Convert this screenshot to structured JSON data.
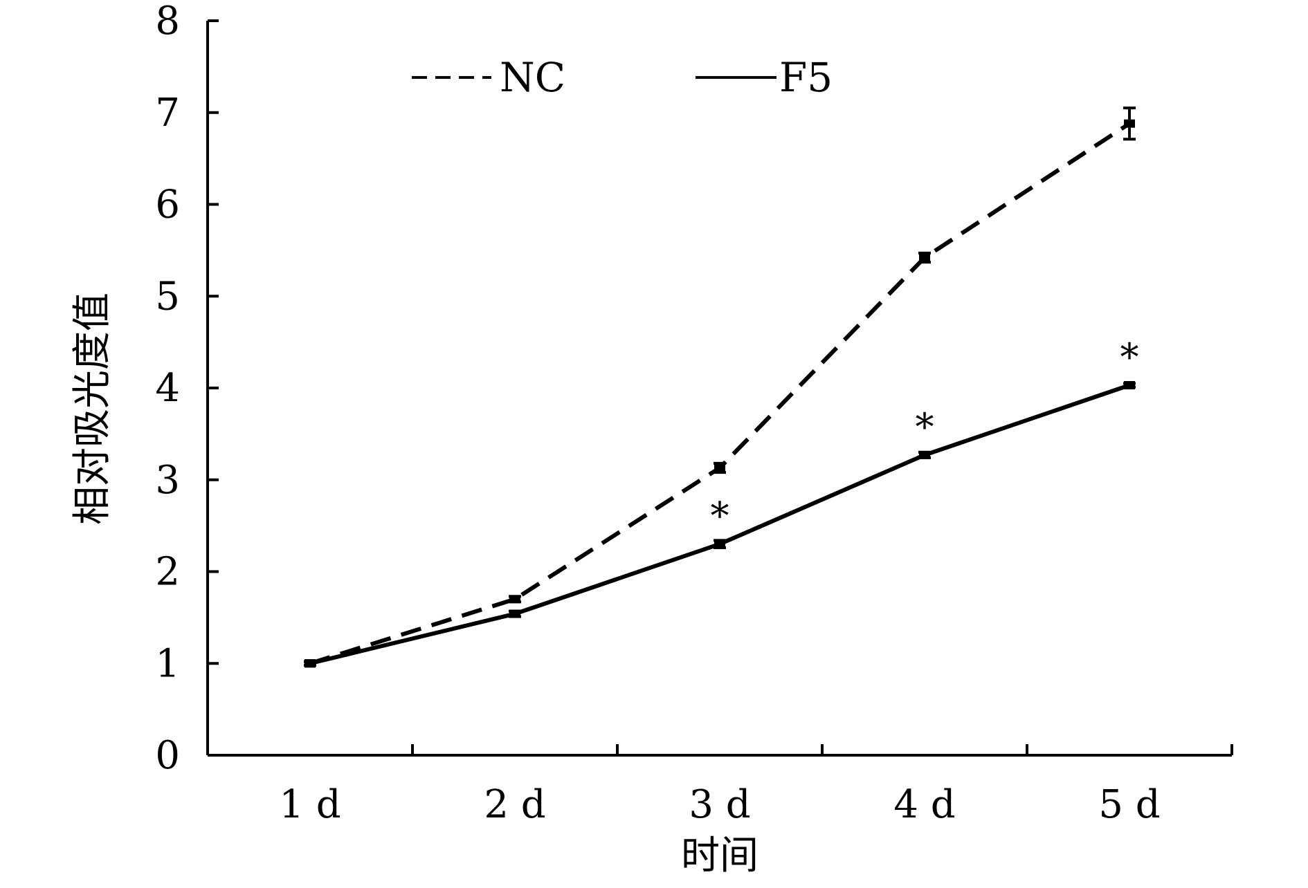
{
  "chart_data": {
    "type": "line",
    "title": "",
    "xlabel": "时间",
    "ylabel": "相对吸光度值",
    "categories": [
      "1 d",
      "2 d",
      "3 d",
      "4 d",
      "5 d"
    ],
    "ylim": [
      0,
      8
    ],
    "yticks": [
      "0",
      "1",
      "2",
      "3",
      "4",
      "5",
      "6",
      "7",
      "8"
    ],
    "grid": false,
    "legend_position": "top",
    "series": [
      {
        "name": "NC",
        "line_style": "dashed",
        "values": [
          1.0,
          1.7,
          3.13,
          5.42,
          6.88
        ],
        "errors": [
          0.02,
          0.03,
          0.05,
          0.05,
          0.17
        ]
      },
      {
        "name": "F5",
        "line_style": "solid",
        "values": [
          1.0,
          1.54,
          2.3,
          3.27,
          4.03
        ],
        "errors": [
          0.02,
          0.03,
          0.04,
          0.03,
          0.02
        ]
      }
    ],
    "annotations": [
      {
        "text": "*",
        "category": "3 d",
        "series": "F5"
      },
      {
        "text": "*",
        "category": "4 d",
        "series": "F5"
      },
      {
        "text": "*",
        "category": "5 d",
        "series": "F5"
      }
    ],
    "colors": {
      "lines": "#000000",
      "axes": "#000000"
    }
  }
}
